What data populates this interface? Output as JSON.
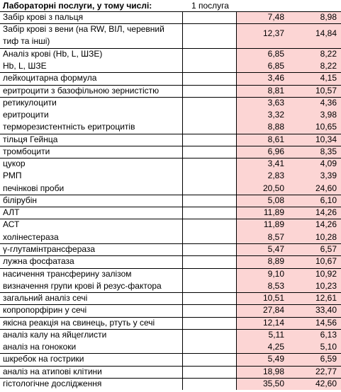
{
  "header": {
    "title": "Лабораторні послуги, у тому числі:",
    "col2": "1 послуга"
  },
  "rows": [
    {
      "name": "Забір крові з пальця",
      "v1": "7,48",
      "v2": "8,98",
      "border": true
    },
    {
      "name": "Забір крові з вени (на RW, ВІЛ, черевний тиф та інші)",
      "v1": "12,37",
      "v2": "14,84",
      "border": true,
      "tall": true
    },
    {
      "name": "Аналіз крові (Hb, L, ШЗЕ)",
      "v1": "6,85",
      "v2": "8,22",
      "border": true
    },
    {
      "name": "Hb, L, ШЗЕ",
      "v1": "6,85",
      "v2": "8,22",
      "border": false
    },
    {
      "name": "лейкоцитарна формула",
      "v1": "3,46",
      "v2": "4,15",
      "border": true
    },
    {
      "name": "еритроцити з базофільною зернистістю",
      "v1": "8,81",
      "v2": "10,57",
      "border": true
    },
    {
      "name": "ретикулоцити",
      "v1": "3,63",
      "v2": "4,36",
      "border": true
    },
    {
      "name": "еритроцити",
      "v1": "3,32",
      "v2": "3,98",
      "border": false
    },
    {
      "name": "терморезистентність еритроцитів",
      "v1": "8,88",
      "v2": "10,65",
      "border": false
    },
    {
      "name": "тільця Гейнца",
      "v1": "8,61",
      "v2": "10,34",
      "border": true
    },
    {
      "name": "тромбоцити",
      "v1": "6,96",
      "v2": "8,35",
      "border": true
    },
    {
      "name": "цукор",
      "v1": "3,41",
      "v2": "4,09",
      "border": true
    },
    {
      "name": "РМП",
      "v1": "2,83",
      "v2": "3,39",
      "border": false
    },
    {
      "name": "печінкові проби",
      "v1": "20,50",
      "v2": "24,60",
      "border": false
    },
    {
      "name": "білірубін",
      "v1": "5,08",
      "v2": "6,10",
      "border": true
    },
    {
      "name": "АЛТ",
      "v1": "11,89",
      "v2": "14,26",
      "border": true
    },
    {
      "name": "АСТ",
      "v1": "11,89",
      "v2": "14,26",
      "border": true
    },
    {
      "name": "холінестераза",
      "v1": "8,57",
      "v2": "10,28",
      "border": false
    },
    {
      "name": "γ-глутамінтрансфераза",
      "v1": "5,47",
      "v2": "6,57",
      "border": true
    },
    {
      "name": "лужна фосфатаза",
      "v1": "8,89",
      "v2": "10,67",
      "border": true
    },
    {
      "name": "насичення трансферину залізом",
      "v1": "9,10",
      "v2": "10,92",
      "border": true
    },
    {
      "name": "визначення групи крові й резус-фактора",
      "v1": "8,53",
      "v2": "10,23",
      "border": false
    },
    {
      "name": "загальний аналіз сечі",
      "v1": "10,51",
      "v2": "12,61",
      "border": true
    },
    {
      "name": "копропорфірин у сечі",
      "v1": "27,84",
      "v2": "33,40",
      "border": true
    },
    {
      "name": "якісна реакція на свинець, ртуть у сечі",
      "v1": "12,14",
      "v2": "14,56",
      "border": true
    },
    {
      "name": "аналіз калу на яйцеглисти",
      "v1": "5,11",
      "v2": "6,13",
      "border": true
    },
    {
      "name": "аналіз на гонококи",
      "v1": "4,25",
      "v2": "5,10",
      "border": false
    },
    {
      "name": "шкребок на гострики",
      "v1": "5,49",
      "v2": "6,59",
      "border": true
    },
    {
      "name": "аналіз на атипові клітини",
      "v1": "18,98",
      "v2": "22,77",
      "border": true
    },
    {
      "name": "гістологічне дослідження",
      "v1": "35,50",
      "v2": "42,60",
      "border": true
    }
  ]
}
